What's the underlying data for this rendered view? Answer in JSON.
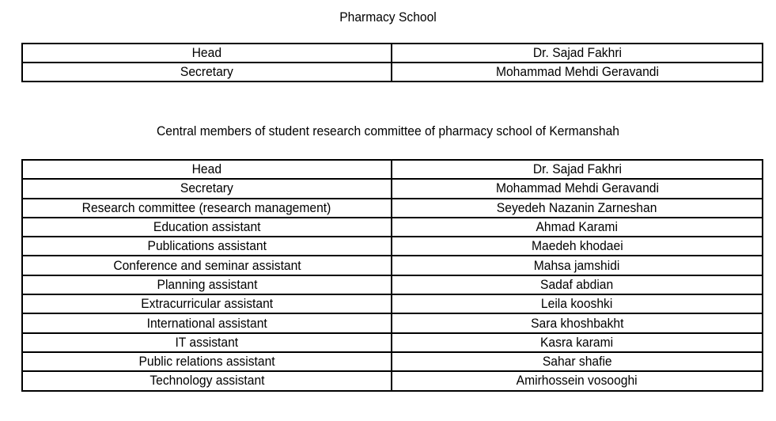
{
  "school_table": {
    "title": "Pharmacy School",
    "rows": [
      {
        "role": "Head",
        "name": "Dr. Sajad Fakhri"
      },
      {
        "role": "Secretary",
        "name": "Mohammad Mehdi Geravandi"
      }
    ]
  },
  "committee_table": {
    "title": "Central members of student research committee of pharmacy school of Kermanshah",
    "rows": [
      {
        "role": "Head",
        "name": "Dr. Sajad Fakhri"
      },
      {
        "role": "Secretary",
        "name": "Mohammad Mehdi Geravandi"
      },
      {
        "role": "Research committee (research management)",
        "name": "Seyedeh  Nazanin Zarneshan"
      },
      {
        "role": "Education assistant",
        "name": "Ahmad Karami"
      },
      {
        "role": "Publications  assistant",
        "name": "Maedeh khodaei"
      },
      {
        "role": "Conference and seminar assistant",
        "name": "Mahsa jamshidi"
      },
      {
        "role": "Planning assistant",
        "name": "Sadaf abdian"
      },
      {
        "role": "Extracurricular assistant",
        "name": "Leila kooshki"
      },
      {
        "role": "International assistant",
        "name": "Sara khoshbakht"
      },
      {
        "role": "IT assistant",
        "name": "Kasra karami"
      },
      {
        "role": "Public relations  assistant",
        "name": "Sahar shafie"
      },
      {
        "role": "Technology assistant",
        "name": "Amirhossein vosooghi"
      }
    ]
  }
}
